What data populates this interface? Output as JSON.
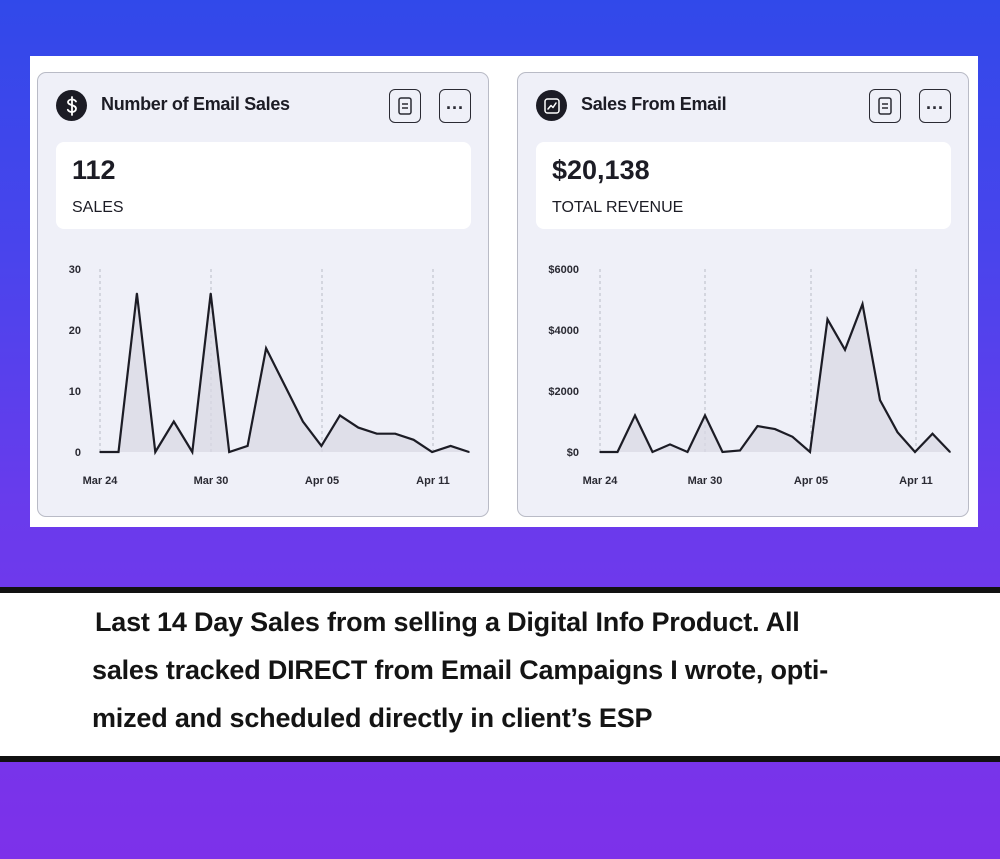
{
  "cards": [
    {
      "title": "Number of Email Sales",
      "icon": "dollar-icon",
      "stat_value": "112",
      "stat_label": "SALES"
    },
    {
      "title": "Sales From Email",
      "icon": "trend-chart-icon",
      "stat_value": "$20,138",
      "stat_label": "TOTAL REVENUE"
    }
  ],
  "caption": {
    "line1": "Last 14 Day Sales from selling a Digital Info Product. All",
    "line2": "sales tracked DIRECT from Email Campaigns I wrote, opti-",
    "line3": "mized and scheduled directly in client’s ESP"
  },
  "colors": {
    "line": "#1c1c25",
    "area": "#d9d9e4",
    "card_bg": "#eff0f8"
  },
  "chart_data": [
    {
      "type": "area",
      "xlabels": [
        "Mar 24",
        "Mar 30",
        "Apr 05",
        "Apr 11"
      ],
      "yticks": [
        "0",
        "10",
        "20",
        "30"
      ],
      "ylim": [
        0,
        30
      ],
      "values": [
        0,
        0,
        26,
        0,
        5,
        0,
        26,
        0,
        1,
        17,
        11,
        5,
        1,
        6,
        4,
        3,
        3,
        2,
        0,
        1,
        0
      ]
    },
    {
      "type": "area",
      "xlabels": [
        "Mar 24",
        "Mar 30",
        "Apr 05",
        "Apr 11"
      ],
      "yticks": [
        "$0",
        "$2000",
        "$4000",
        "$6000"
      ],
      "ylim": [
        0,
        6000
      ],
      "values": [
        0,
        0,
        1200,
        0,
        250,
        0,
        1200,
        0,
        50,
        850,
        750,
        500,
        0,
        4350,
        3350,
        4850,
        1700,
        650,
        0,
        600,
        0
      ]
    }
  ]
}
